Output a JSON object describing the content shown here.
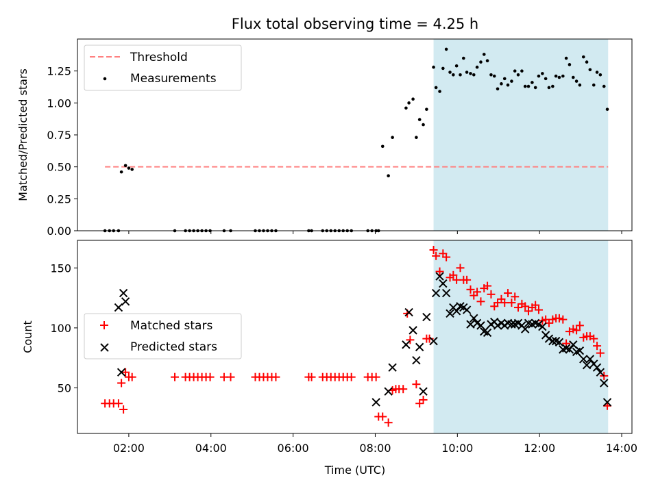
{
  "title": "Flux total observing time = 4.25 h",
  "colors": {
    "threshold": "#ff8080",
    "measurement": "#000000",
    "matched": "#ff0000",
    "predicted": "#000000",
    "highlight": "#add8e6"
  },
  "chart_data": [
    {
      "type": "scatter",
      "ylabel": "Matched/Predicted stars",
      "xlim": [
        0.75,
        14.25
      ],
      "ylim": [
        0.0,
        1.5
      ],
      "yticks": [
        0.0,
        0.25,
        0.5,
        0.75,
        1.0,
        1.25
      ],
      "ytick_labels": [
        "0.00",
        "0.25",
        "0.50",
        "0.75",
        "1.00",
        "1.25"
      ],
      "highlight": {
        "x0": 9.42,
        "x1": 13.67
      },
      "legend": {
        "placement": "upper-left",
        "threshold_label": "Threshold",
        "measurements_label": "Measurements"
      },
      "threshold": {
        "y": 0.5,
        "x0": 1.42,
        "x1": 13.67
      },
      "measurements": {
        "x": [
          1.42,
          1.53,
          1.63,
          1.75,
          1.82,
          1.92,
          2.0,
          2.08,
          3.12,
          3.38,
          3.48,
          3.58,
          3.68,
          3.78,
          3.88,
          3.98,
          4.32,
          4.48,
          5.08,
          5.18,
          5.28,
          5.38,
          5.48,
          5.58,
          6.38,
          6.45,
          6.72,
          6.82,
          6.92,
          7.02,
          7.12,
          7.22,
          7.32,
          7.42,
          7.82,
          7.92,
          8.02,
          8.08,
          8.18,
          8.32,
          8.42,
          8.75,
          8.82,
          8.92,
          9.0,
          9.08,
          9.17,
          9.25,
          9.42,
          9.48,
          9.57,
          9.65,
          9.73,
          9.82,
          9.9,
          9.98,
          10.07,
          10.15,
          10.23,
          10.32,
          10.4,
          10.48,
          10.57,
          10.65,
          10.73,
          10.82,
          10.9,
          10.98,
          11.07,
          11.15,
          11.23,
          11.32,
          11.4,
          11.48,
          11.57,
          11.65,
          11.73,
          11.82,
          11.9,
          11.98,
          12.07,
          12.15,
          12.23,
          12.32,
          12.4,
          12.48,
          12.57,
          12.65,
          12.73,
          12.82,
          12.9,
          12.98,
          13.07,
          13.15,
          13.23,
          13.32,
          13.4,
          13.48,
          13.57,
          13.65
        ],
        "y": [
          0,
          0,
          0,
          0,
          0.46,
          0.51,
          0.49,
          0.48,
          0,
          0,
          0,
          0,
          0,
          0,
          0,
          0,
          0,
          0,
          0,
          0,
          0,
          0,
          0,
          0,
          0,
          0,
          0,
          0,
          0,
          0,
          0,
          0,
          0,
          0,
          0,
          0,
          0,
          0,
          0.66,
          0.43,
          0.73,
          0.96,
          1.0,
          1.03,
          0.73,
          0.87,
          0.83,
          0.95,
          1.28,
          1.12,
          1.09,
          1.27,
          1.42,
          1.24,
          1.22,
          1.29,
          1.22,
          1.35,
          1.24,
          1.23,
          1.22,
          1.28,
          1.32,
          1.38,
          1.33,
          1.22,
          1.21,
          1.11,
          1.15,
          1.19,
          1.14,
          1.17,
          1.25,
          1.22,
          1.25,
          1.13,
          1.13,
          1.16,
          1.12,
          1.21,
          1.23,
          1.19,
          1.12,
          1.13,
          1.21,
          1.2,
          1.21,
          1.35,
          1.3,
          1.2,
          1.17,
          1.14,
          1.36,
          1.32,
          1.26,
          1.14,
          1.24,
          1.22,
          1.13,
          0.95
        ]
      }
    },
    {
      "type": "scatter",
      "xlabel": "Time (UTC)",
      "ylabel": "Count",
      "xlim": [
        0.75,
        14.25
      ],
      "ylim": [
        12,
        173
      ],
      "yticks": [
        50,
        100,
        150
      ],
      "ytick_labels": [
        "50",
        "100",
        "150"
      ],
      "xticks": [
        2,
        4,
        6,
        8,
        10,
        12,
        14
      ],
      "xtick_labels": [
        "02:00",
        "04:00",
        "06:00",
        "08:00",
        "10:00",
        "12:00",
        "14:00"
      ],
      "highlight": {
        "x0": 9.42,
        "x1": 13.67
      },
      "legend": {
        "placement": "center-left"
      },
      "series": [
        {
          "name": "Matched stars",
          "marker": "plus",
          "x": [
            1.42,
            1.53,
            1.63,
            1.75,
            1.82,
            1.87,
            1.92,
            2.0,
            2.08,
            3.12,
            3.38,
            3.48,
            3.58,
            3.68,
            3.78,
            3.88,
            3.98,
            4.32,
            4.48,
            5.08,
            5.18,
            5.28,
            5.38,
            5.48,
            5.58,
            6.38,
            6.45,
            6.72,
            6.82,
            6.92,
            7.02,
            7.12,
            7.22,
            7.32,
            7.42,
            7.82,
            7.92,
            8.02,
            8.08,
            8.18,
            8.32,
            8.42,
            8.5,
            8.58,
            8.68,
            8.78,
            8.85,
            9.0,
            9.08,
            9.17,
            9.25,
            9.32,
            9.42,
            9.48,
            9.57,
            9.65,
            9.73,
            9.82,
            9.9,
            9.98,
            10.07,
            10.15,
            10.23,
            10.32,
            10.4,
            10.48,
            10.57,
            10.65,
            10.73,
            10.82,
            10.9,
            10.98,
            11.07,
            11.15,
            11.23,
            11.32,
            11.4,
            11.48,
            11.57,
            11.65,
            11.73,
            11.82,
            11.9,
            11.98,
            12.07,
            12.15,
            12.23,
            12.32,
            12.4,
            12.48,
            12.57,
            12.65,
            12.73,
            12.82,
            12.9,
            12.98,
            13.07,
            13.15,
            13.23,
            13.32,
            13.4,
            13.48,
            13.57,
            13.65
          ],
          "y": [
            37,
            37,
            37,
            37,
            54,
            32,
            63,
            59,
            59,
            59,
            59,
            59,
            59,
            59,
            59,
            59,
            59,
            59,
            59,
            59,
            59,
            59,
            59,
            59,
            59,
            59,
            59,
            59,
            59,
            59,
            59,
            59,
            59,
            59,
            59,
            59,
            59,
            59,
            26,
            26,
            21,
            48,
            49,
            49,
            49,
            112,
            90,
            53,
            37,
            40,
            91,
            91,
            165,
            160,
            147,
            162,
            159,
            142,
            144,
            140,
            150,
            140,
            140,
            132,
            127,
            130,
            122,
            133,
            135,
            128,
            118,
            121,
            124,
            121,
            129,
            121,
            126,
            117,
            120,
            118,
            114,
            117,
            119,
            115,
            106,
            107,
            104,
            107,
            108,
            108,
            107,
            87,
            97,
            99,
            98,
            102,
            92,
            93,
            93,
            91,
            85,
            79,
            60,
            35
          ]
        },
        {
          "name": "Predicted stars",
          "marker": "x",
          "x": [
            1.75,
            1.82,
            1.87,
            1.92,
            8.02,
            8.32,
            8.42,
            8.75,
            8.82,
            8.92,
            9.0,
            9.08,
            9.17,
            9.25,
            9.42,
            9.48,
            9.57,
            9.65,
            9.73,
            9.82,
            9.9,
            9.98,
            10.07,
            10.15,
            10.23,
            10.32,
            10.4,
            10.48,
            10.57,
            10.65,
            10.73,
            10.82,
            10.9,
            10.98,
            11.07,
            11.15,
            11.23,
            11.32,
            11.4,
            11.48,
            11.57,
            11.65,
            11.73,
            11.82,
            11.9,
            11.98,
            12.07,
            12.15,
            12.23,
            12.32,
            12.4,
            12.48,
            12.57,
            12.65,
            12.73,
            12.82,
            12.9,
            12.98,
            13.07,
            13.15,
            13.23,
            13.32,
            13.4,
            13.48,
            13.57,
            13.65
          ],
          "y": [
            117,
            63,
            129,
            122,
            38,
            47,
            67,
            86,
            113,
            98,
            73,
            84,
            47,
            109,
            89,
            129,
            143,
            137,
            129,
            112,
            117,
            114,
            118,
            117,
            115,
            103,
            108,
            104,
            102,
            97,
            96,
            103,
            105,
            102,
            104,
            102,
            104,
            103,
            103,
            104,
            102,
            99,
            104,
            103,
            104,
            103,
            101,
            94,
            91,
            89,
            89,
            88,
            82,
            83,
            82,
            86,
            80,
            81,
            74,
            69,
            74,
            70,
            67,
            63,
            54,
            38
          ]
        }
      ]
    }
  ]
}
